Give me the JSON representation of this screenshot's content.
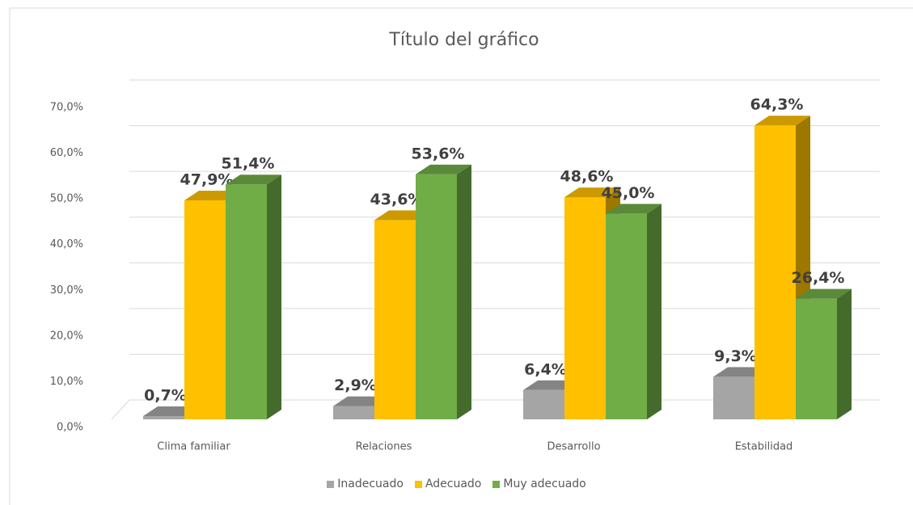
{
  "chart_data": {
    "type": "bar3d",
    "title": "Título del gráfico",
    "categories": [
      "Clima familiar",
      "Relaciones",
      "Desarrollo",
      "Estabilidad"
    ],
    "series": [
      {
        "name": "Inadecuado",
        "color": "#a5a5a5",
        "values": [
          0.7,
          2.9,
          6.4,
          9.3
        ],
        "value_labels": [
          "0,7%",
          "2,9%",
          "6,4%",
          "9,3%"
        ]
      },
      {
        "name": "Adecuado",
        "color": "#ffc000",
        "values": [
          47.9,
          43.6,
          48.6,
          64.3
        ],
        "value_labels": [
          "47,9%",
          "43,6%",
          "48,6%",
          "64,3%"
        ]
      },
      {
        "name": "Muy adecuado",
        "color": "#70ad47",
        "values": [
          51.4,
          53.6,
          45.0,
          26.4
        ],
        "value_labels": [
          "51,4%",
          "53,6%",
          "45,0%",
          "26,4%"
        ]
      }
    ],
    "ylim": [
      0,
      70
    ],
    "yticks": [
      {
        "value": 0,
        "label": "0,0%"
      },
      {
        "value": 10,
        "label": "10,0%"
      },
      {
        "value": 20,
        "label": "20,0%"
      },
      {
        "value": 30,
        "label": "30,0%"
      },
      {
        "value": 40,
        "label": "40,0%"
      },
      {
        "value": 50,
        "label": "50,0%"
      },
      {
        "value": 60,
        "label": "60,0%"
      },
      {
        "value": 70,
        "label": "70,0%"
      }
    ],
    "grid": true,
    "legend": "bottom"
  }
}
